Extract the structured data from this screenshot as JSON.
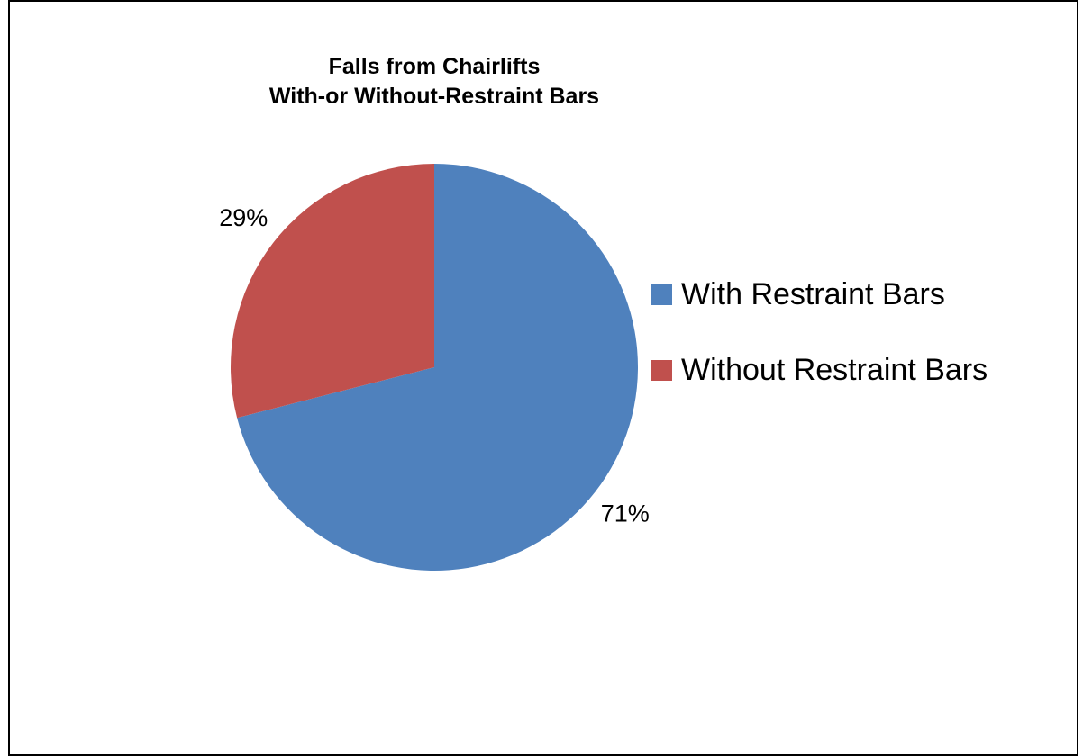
{
  "chart_data": {
    "type": "pie",
    "title": [
      "Falls from Chairlifts",
      "With-or Without-Restraint Bars"
    ],
    "categories": [
      "With Restraint Bars",
      "Without Restraint Bars"
    ],
    "values": [
      71,
      29
    ],
    "data_labels": [
      "71%",
      "29%"
    ],
    "colors": [
      "#4F81BD",
      "#C0504D"
    ],
    "legend_position": "right"
  }
}
